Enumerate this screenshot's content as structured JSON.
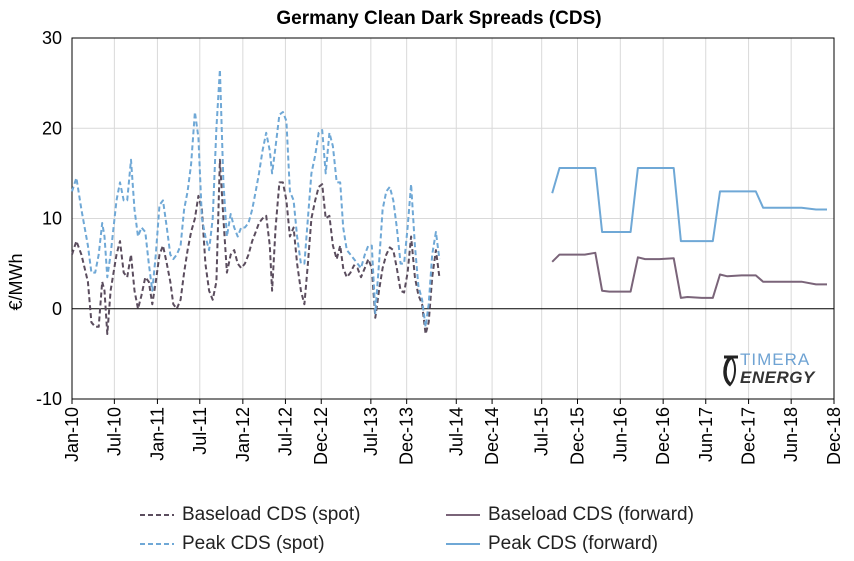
{
  "chart_data": {
    "type": "line",
    "title": "Germany Clean Dark Spreads (CDS)",
    "ylabel": "€/MWh",
    "xlabel": "",
    "ylim": [
      -10,
      30
    ],
    "yticks": [
      -10,
      0,
      10,
      20,
      30
    ],
    "xlim": [
      "2010-01",
      "2018-12"
    ],
    "xtick_labels": [
      "Jan-10",
      "Jul-10",
      "Jan-11",
      "Jul-11",
      "Jan-12",
      "Jul-12",
      "Dec-12",
      "Jul-13",
      "Dec-13",
      "Jul-14",
      "Dec-14",
      "Jul-15",
      "Dec-15",
      "Jun-16",
      "Dec-16",
      "Jun-17",
      "Dec-17",
      "Jun-18",
      "Dec-18"
    ],
    "xtick_dates": [
      "2010-01",
      "2010-07",
      "2011-01",
      "2011-07",
      "2012-01",
      "2012-07",
      "2012-12",
      "2013-07",
      "2013-12",
      "2014-07",
      "2014-12",
      "2015-07",
      "2015-12",
      "2016-06",
      "2016-12",
      "2017-06",
      "2017-12",
      "2018-06",
      "2018-12"
    ],
    "grid": "vertical-and-horizontal",
    "legend_position": "bottom",
    "series": [
      {
        "name": "Baseload CDS (spot)",
        "style": "dashed",
        "color": "#5b4d5e",
        "points": [
          [
            "2010-01-01",
            6
          ],
          [
            "2010-01-20",
            7.5
          ],
          [
            "2010-02-10",
            6
          ],
          [
            "2010-03-10",
            3
          ],
          [
            "2010-03-25",
            -1.5
          ],
          [
            "2010-04-10",
            -2
          ],
          [
            "2010-04-25",
            -2
          ],
          [
            "2010-05-10",
            3
          ],
          [
            "2010-05-20",
            2
          ],
          [
            "2010-06-01",
            -2.8
          ],
          [
            "2010-06-15",
            2
          ],
          [
            "2010-07-10",
            6
          ],
          [
            "2010-07-25",
            7.5
          ],
          [
            "2010-08-10",
            4
          ],
          [
            "2010-08-25",
            3.5
          ],
          [
            "2010-09-10",
            6
          ],
          [
            "2010-09-25",
            2
          ],
          [
            "2010-10-10",
            0
          ],
          [
            "2010-10-25",
            1.5
          ],
          [
            "2010-11-10",
            3.5
          ],
          [
            "2010-11-25",
            3
          ],
          [
            "2010-12-10",
            0.5
          ],
          [
            "2010-12-25",
            3
          ],
          [
            "2011-01-10",
            6
          ],
          [
            "2011-01-25",
            7
          ],
          [
            "2011-02-10",
            5
          ],
          [
            "2011-02-25",
            3
          ],
          [
            "2011-03-10",
            0.5
          ],
          [
            "2011-03-25",
            0
          ],
          [
            "2011-04-10",
            1
          ],
          [
            "2011-04-25",
            4
          ],
          [
            "2011-05-10",
            6.5
          ],
          [
            "2011-05-25",
            8.5
          ],
          [
            "2011-06-10",
            10
          ],
          [
            "2011-06-25",
            12.5
          ],
          [
            "2011-07-10",
            11
          ],
          [
            "2011-07-25",
            5
          ],
          [
            "2011-08-10",
            2
          ],
          [
            "2011-08-25",
            1
          ],
          [
            "2011-09-10",
            3
          ],
          [
            "2011-09-25",
            16.5
          ],
          [
            "2011-10-10",
            10
          ],
          [
            "2011-10-25",
            4
          ],
          [
            "2011-11-10",
            6
          ],
          [
            "2011-11-25",
            6.5
          ],
          [
            "2011-12-10",
            5
          ],
          [
            "2011-12-25",
            4.5
          ],
          [
            "2012-01-10",
            5
          ],
          [
            "2012-01-25",
            6
          ],
          [
            "2012-02-10",
            7.5
          ],
          [
            "2012-02-25",
            8.5
          ],
          [
            "2012-03-10",
            9.5
          ],
          [
            "2012-03-25",
            10
          ],
          [
            "2012-04-10",
            10.3
          ],
          [
            "2012-04-25",
            7
          ],
          [
            "2012-05-05",
            2
          ],
          [
            "2012-05-20",
            9
          ],
          [
            "2012-06-05",
            14
          ],
          [
            "2012-06-20",
            14
          ],
          [
            "2012-07-05",
            12
          ],
          [
            "2012-07-20",
            8
          ],
          [
            "2012-08-05",
            9
          ],
          [
            "2012-08-20",
            5
          ],
          [
            "2012-09-05",
            2
          ],
          [
            "2012-09-20",
            0.5
          ],
          [
            "2012-10-05",
            5
          ],
          [
            "2012-10-20",
            10
          ],
          [
            "2012-11-05",
            12
          ],
          [
            "2012-11-20",
            13.5
          ],
          [
            "2012-12-05",
            13.8
          ],
          [
            "2012-12-20",
            10
          ],
          [
            "2013-01-05",
            10.3
          ],
          [
            "2013-01-20",
            7
          ],
          [
            "2013-02-05",
            5.5
          ],
          [
            "2013-02-20",
            7
          ],
          [
            "2013-03-05",
            4.5
          ],
          [
            "2013-03-20",
            3.5
          ],
          [
            "2013-04-05",
            4
          ],
          [
            "2013-04-20",
            4.8
          ],
          [
            "2013-05-05",
            4.5
          ],
          [
            "2013-05-20",
            3.5
          ],
          [
            "2013-06-05",
            4.5
          ],
          [
            "2013-06-20",
            5.5
          ],
          [
            "2013-07-05",
            4.5
          ],
          [
            "2013-07-20",
            -1
          ],
          [
            "2013-08-05",
            2
          ],
          [
            "2013-08-20",
            4.5
          ],
          [
            "2013-09-05",
            6
          ],
          [
            "2013-09-20",
            6.8
          ],
          [
            "2013-10-05",
            6.5
          ],
          [
            "2013-10-20",
            4.5
          ],
          [
            "2013-11-05",
            2
          ],
          [
            "2013-11-20",
            1.8
          ],
          [
            "2013-12-05",
            4
          ],
          [
            "2013-12-20",
            8
          ],
          [
            "2014-01-05",
            3.5
          ],
          [
            "2014-01-20",
            1.5
          ],
          [
            "2014-02-05",
            0.5
          ],
          [
            "2014-02-20",
            -2.8
          ],
          [
            "2014-03-05",
            -1.5
          ],
          [
            "2014-03-20",
            3.5
          ],
          [
            "2014-04-05",
            6.5
          ],
          [
            "2014-04-20",
            3.5
          ]
        ]
      },
      {
        "name": "Peak CDS (spot)",
        "style": "dashed",
        "color": "#6fa8d6",
        "points": [
          [
            "2010-01-01",
            13
          ],
          [
            "2010-01-20",
            14.5
          ],
          [
            "2010-02-10",
            11
          ],
          [
            "2010-03-10",
            7
          ],
          [
            "2010-03-25",
            4
          ],
          [
            "2010-04-10",
            4
          ],
          [
            "2010-04-25",
            6
          ],
          [
            "2010-05-10",
            9.5
          ],
          [
            "2010-05-20",
            8
          ],
          [
            "2010-06-01",
            3.5
          ],
          [
            "2010-06-15",
            6
          ],
          [
            "2010-07-10",
            12
          ],
          [
            "2010-07-25",
            14
          ],
          [
            "2010-08-10",
            12
          ],
          [
            "2010-08-25",
            12
          ],
          [
            "2010-09-10",
            16.5
          ],
          [
            "2010-09-25",
            11
          ],
          [
            "2010-10-10",
            8
          ],
          [
            "2010-10-25",
            9
          ],
          [
            "2010-11-10",
            8.5
          ],
          [
            "2010-11-25",
            5
          ],
          [
            "2010-12-10",
            2
          ],
          [
            "2010-12-25",
            6
          ],
          [
            "2011-01-10",
            11.5
          ],
          [
            "2011-01-25",
            12
          ],
          [
            "2011-02-10",
            9
          ],
          [
            "2011-02-25",
            6
          ],
          [
            "2011-03-10",
            5.5
          ],
          [
            "2011-03-25",
            6
          ],
          [
            "2011-04-10",
            7
          ],
          [
            "2011-04-25",
            11
          ],
          [
            "2011-05-10",
            13
          ],
          [
            "2011-05-25",
            16
          ],
          [
            "2011-06-10",
            21.8
          ],
          [
            "2011-06-25",
            19
          ],
          [
            "2011-07-10",
            10
          ],
          [
            "2011-07-25",
            8
          ],
          [
            "2011-08-10",
            6.5
          ],
          [
            "2011-08-25",
            10
          ],
          [
            "2011-09-10",
            20
          ],
          [
            "2011-09-25",
            26.5
          ],
          [
            "2011-10-10",
            14
          ],
          [
            "2011-10-25",
            8
          ],
          [
            "2011-11-10",
            10.5
          ],
          [
            "2011-11-25",
            9
          ],
          [
            "2011-12-10",
            8
          ],
          [
            "2011-12-25",
            9
          ],
          [
            "2012-01-10",
            9
          ],
          [
            "2012-01-25",
            9.5
          ],
          [
            "2012-02-10",
            11
          ],
          [
            "2012-02-25",
            13
          ],
          [
            "2012-03-10",
            15
          ],
          [
            "2012-03-25",
            17.5
          ],
          [
            "2012-04-10",
            19.5
          ],
          [
            "2012-04-25",
            17.5
          ],
          [
            "2012-05-05",
            15
          ],
          [
            "2012-05-20",
            18
          ],
          [
            "2012-06-05",
            21.5
          ],
          [
            "2012-06-20",
            21.8
          ],
          [
            "2012-07-05",
            20.8
          ],
          [
            "2012-07-20",
            13
          ],
          [
            "2012-08-05",
            12
          ],
          [
            "2012-08-20",
            8
          ],
          [
            "2012-09-05",
            5
          ],
          [
            "2012-09-20",
            5
          ],
          [
            "2012-10-05",
            10
          ],
          [
            "2012-10-20",
            15
          ],
          [
            "2012-11-05",
            17
          ],
          [
            "2012-11-20",
            19.5
          ],
          [
            "2012-12-05",
            19.8
          ],
          [
            "2012-12-20",
            15
          ],
          [
            "2013-01-05",
            19.5
          ],
          [
            "2013-01-20",
            18
          ],
          [
            "2013-02-05",
            14
          ],
          [
            "2013-02-20",
            14
          ],
          [
            "2013-03-05",
            9
          ],
          [
            "2013-03-20",
            6.5
          ],
          [
            "2013-04-05",
            6
          ],
          [
            "2013-04-20",
            5.5
          ],
          [
            "2013-05-05",
            5
          ],
          [
            "2013-05-20",
            4.5
          ],
          [
            "2013-06-05",
            6
          ],
          [
            "2013-06-20",
            7
          ],
          [
            "2013-07-05",
            7
          ],
          [
            "2013-07-20",
            -0.5
          ],
          [
            "2013-08-05",
            5
          ],
          [
            "2013-08-20",
            11
          ],
          [
            "2013-09-05",
            13
          ],
          [
            "2013-09-20",
            13.5
          ],
          [
            "2013-10-05",
            12
          ],
          [
            "2013-10-20",
            9
          ],
          [
            "2013-11-05",
            5
          ],
          [
            "2013-11-20",
            5
          ],
          [
            "2013-12-05",
            9
          ],
          [
            "2013-12-20",
            13.8
          ],
          [
            "2014-01-05",
            7
          ],
          [
            "2014-01-20",
            2.5
          ],
          [
            "2014-02-05",
            1
          ],
          [
            "2014-02-20",
            -2
          ],
          [
            "2014-03-05",
            0.5
          ],
          [
            "2014-03-20",
            6
          ],
          [
            "2014-04-05",
            8.5
          ],
          [
            "2014-04-20",
            5.5
          ]
        ]
      },
      {
        "name": "Baseload CDS (forward)",
        "style": "solid",
        "color": "#7a6479",
        "points": [
          [
            "2015-08-15",
            5.2
          ],
          [
            "2015-09-15",
            6
          ],
          [
            "2015-11-01",
            6
          ],
          [
            "2015-12-15",
            6
          ],
          [
            "2016-01-01",
            6
          ],
          [
            "2016-02-15",
            6.2
          ],
          [
            "2016-03-15",
            2
          ],
          [
            "2016-04-15",
            1.9
          ],
          [
            "2016-07-15",
            1.9
          ],
          [
            "2016-08-15",
            5.7
          ],
          [
            "2016-09-15",
            5.5
          ],
          [
            "2016-11-15",
            5.5
          ],
          [
            "2017-01-15",
            5.6
          ],
          [
            "2017-02-15",
            1.2
          ],
          [
            "2017-03-15",
            1.3
          ],
          [
            "2017-05-15",
            1.2
          ],
          [
            "2017-07-01",
            1.2
          ],
          [
            "2017-08-01",
            3.8
          ],
          [
            "2017-09-01",
            3.6
          ],
          [
            "2017-11-01",
            3.7
          ],
          [
            "2018-01-01",
            3.7
          ],
          [
            "2018-02-01",
            3.0
          ],
          [
            "2018-04-15",
            3.0
          ],
          [
            "2018-07-15",
            3.0
          ],
          [
            "2018-09-15",
            2.7
          ],
          [
            "2018-11-01",
            2.7
          ]
        ]
      },
      {
        "name": "Peak CDS (forward)",
        "style": "solid",
        "color": "#6fa8d6",
        "points": [
          [
            "2015-08-15",
            12.8
          ],
          [
            "2015-09-15",
            15.6
          ],
          [
            "2015-11-01",
            15.6
          ],
          [
            "2016-01-01",
            15.6
          ],
          [
            "2016-02-15",
            15.6
          ],
          [
            "2016-03-15",
            8.5
          ],
          [
            "2016-04-15",
            8.5
          ],
          [
            "2016-07-15",
            8.5
          ],
          [
            "2016-08-15",
            15.6
          ],
          [
            "2016-09-15",
            15.6
          ],
          [
            "2016-11-15",
            15.6
          ],
          [
            "2017-01-15",
            15.6
          ],
          [
            "2017-02-15",
            7.5
          ],
          [
            "2017-03-15",
            7.5
          ],
          [
            "2017-05-15",
            7.5
          ],
          [
            "2017-07-01",
            7.5
          ],
          [
            "2017-08-01",
            13
          ],
          [
            "2017-09-01",
            13
          ],
          [
            "2017-11-01",
            13
          ],
          [
            "2018-01-01",
            13
          ],
          [
            "2018-02-01",
            11.2
          ],
          [
            "2018-04-15",
            11.2
          ],
          [
            "2018-07-15",
            11.2
          ],
          [
            "2018-09-15",
            11
          ],
          [
            "2018-11-01",
            11
          ]
        ]
      }
    ]
  },
  "legend": {
    "items": [
      {
        "label": "Baseload CDS (spot)",
        "style": "dashed",
        "color": "#5b4d5e"
      },
      {
        "label": "Baseload CDS (forward)",
        "style": "solid",
        "color": "#7a6479"
      },
      {
        "label": "Peak CDS (spot)",
        "style": "dashed",
        "color": "#6fa8d6"
      },
      {
        "label": "Peak CDS (forward)",
        "style": "solid",
        "color": "#6fa8d6"
      }
    ]
  },
  "logo": {
    "line1": "TIMERA",
    "line2": "ENERGY"
  }
}
